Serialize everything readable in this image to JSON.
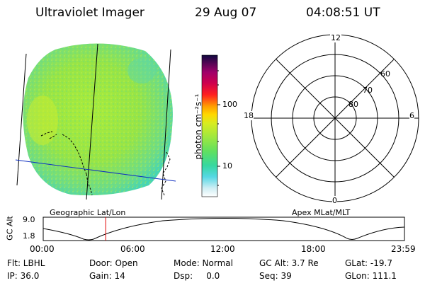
{
  "header": {
    "title": "Ultraviolet Imager",
    "date": "29 Aug 07",
    "time": "04:08:51 UT"
  },
  "colorbar": {
    "unit_label": "photon cm⁻²s⁻¹",
    "ticks": [
      "100",
      "10"
    ]
  },
  "polar": {
    "mlt_labels": {
      "top": "12",
      "left": "18",
      "right": "6",
      "bottom": "0"
    },
    "lat_labels": [
      "60",
      "70",
      "80"
    ]
  },
  "map_captions": {
    "left": "Geographic Lat/Lon",
    "right": "Apex MLat/MLT"
  },
  "altitude_plot": {
    "axis_label": "GC Alt",
    "y_ticks": [
      "9.0",
      "1.8"
    ],
    "x_ticks": [
      "00:00",
      "06:00",
      "12:00",
      "18:00",
      "23:59"
    ],
    "current_time_hours": 4.15,
    "colors": {
      "marker": "#e00000"
    }
  },
  "status": {
    "flt": "Flt: LBHL",
    "door": "Door: Open",
    "mode": "Mode: Normal",
    "gcalt": "GC Alt: 3.7 Re",
    "glat": "GLat: -19.7",
    "ip": "IP: 36.0",
    "gain": "Gain: 14",
    "dsp": "Dsp:     0.0",
    "seq": "Seq: 39",
    "glon": "GLon: 111.1"
  },
  "colors": {
    "disk_main": "#9ee840",
    "disk_edge": "#4fd8a0",
    "meridian": "#000000",
    "track": "#1030c0"
  }
}
